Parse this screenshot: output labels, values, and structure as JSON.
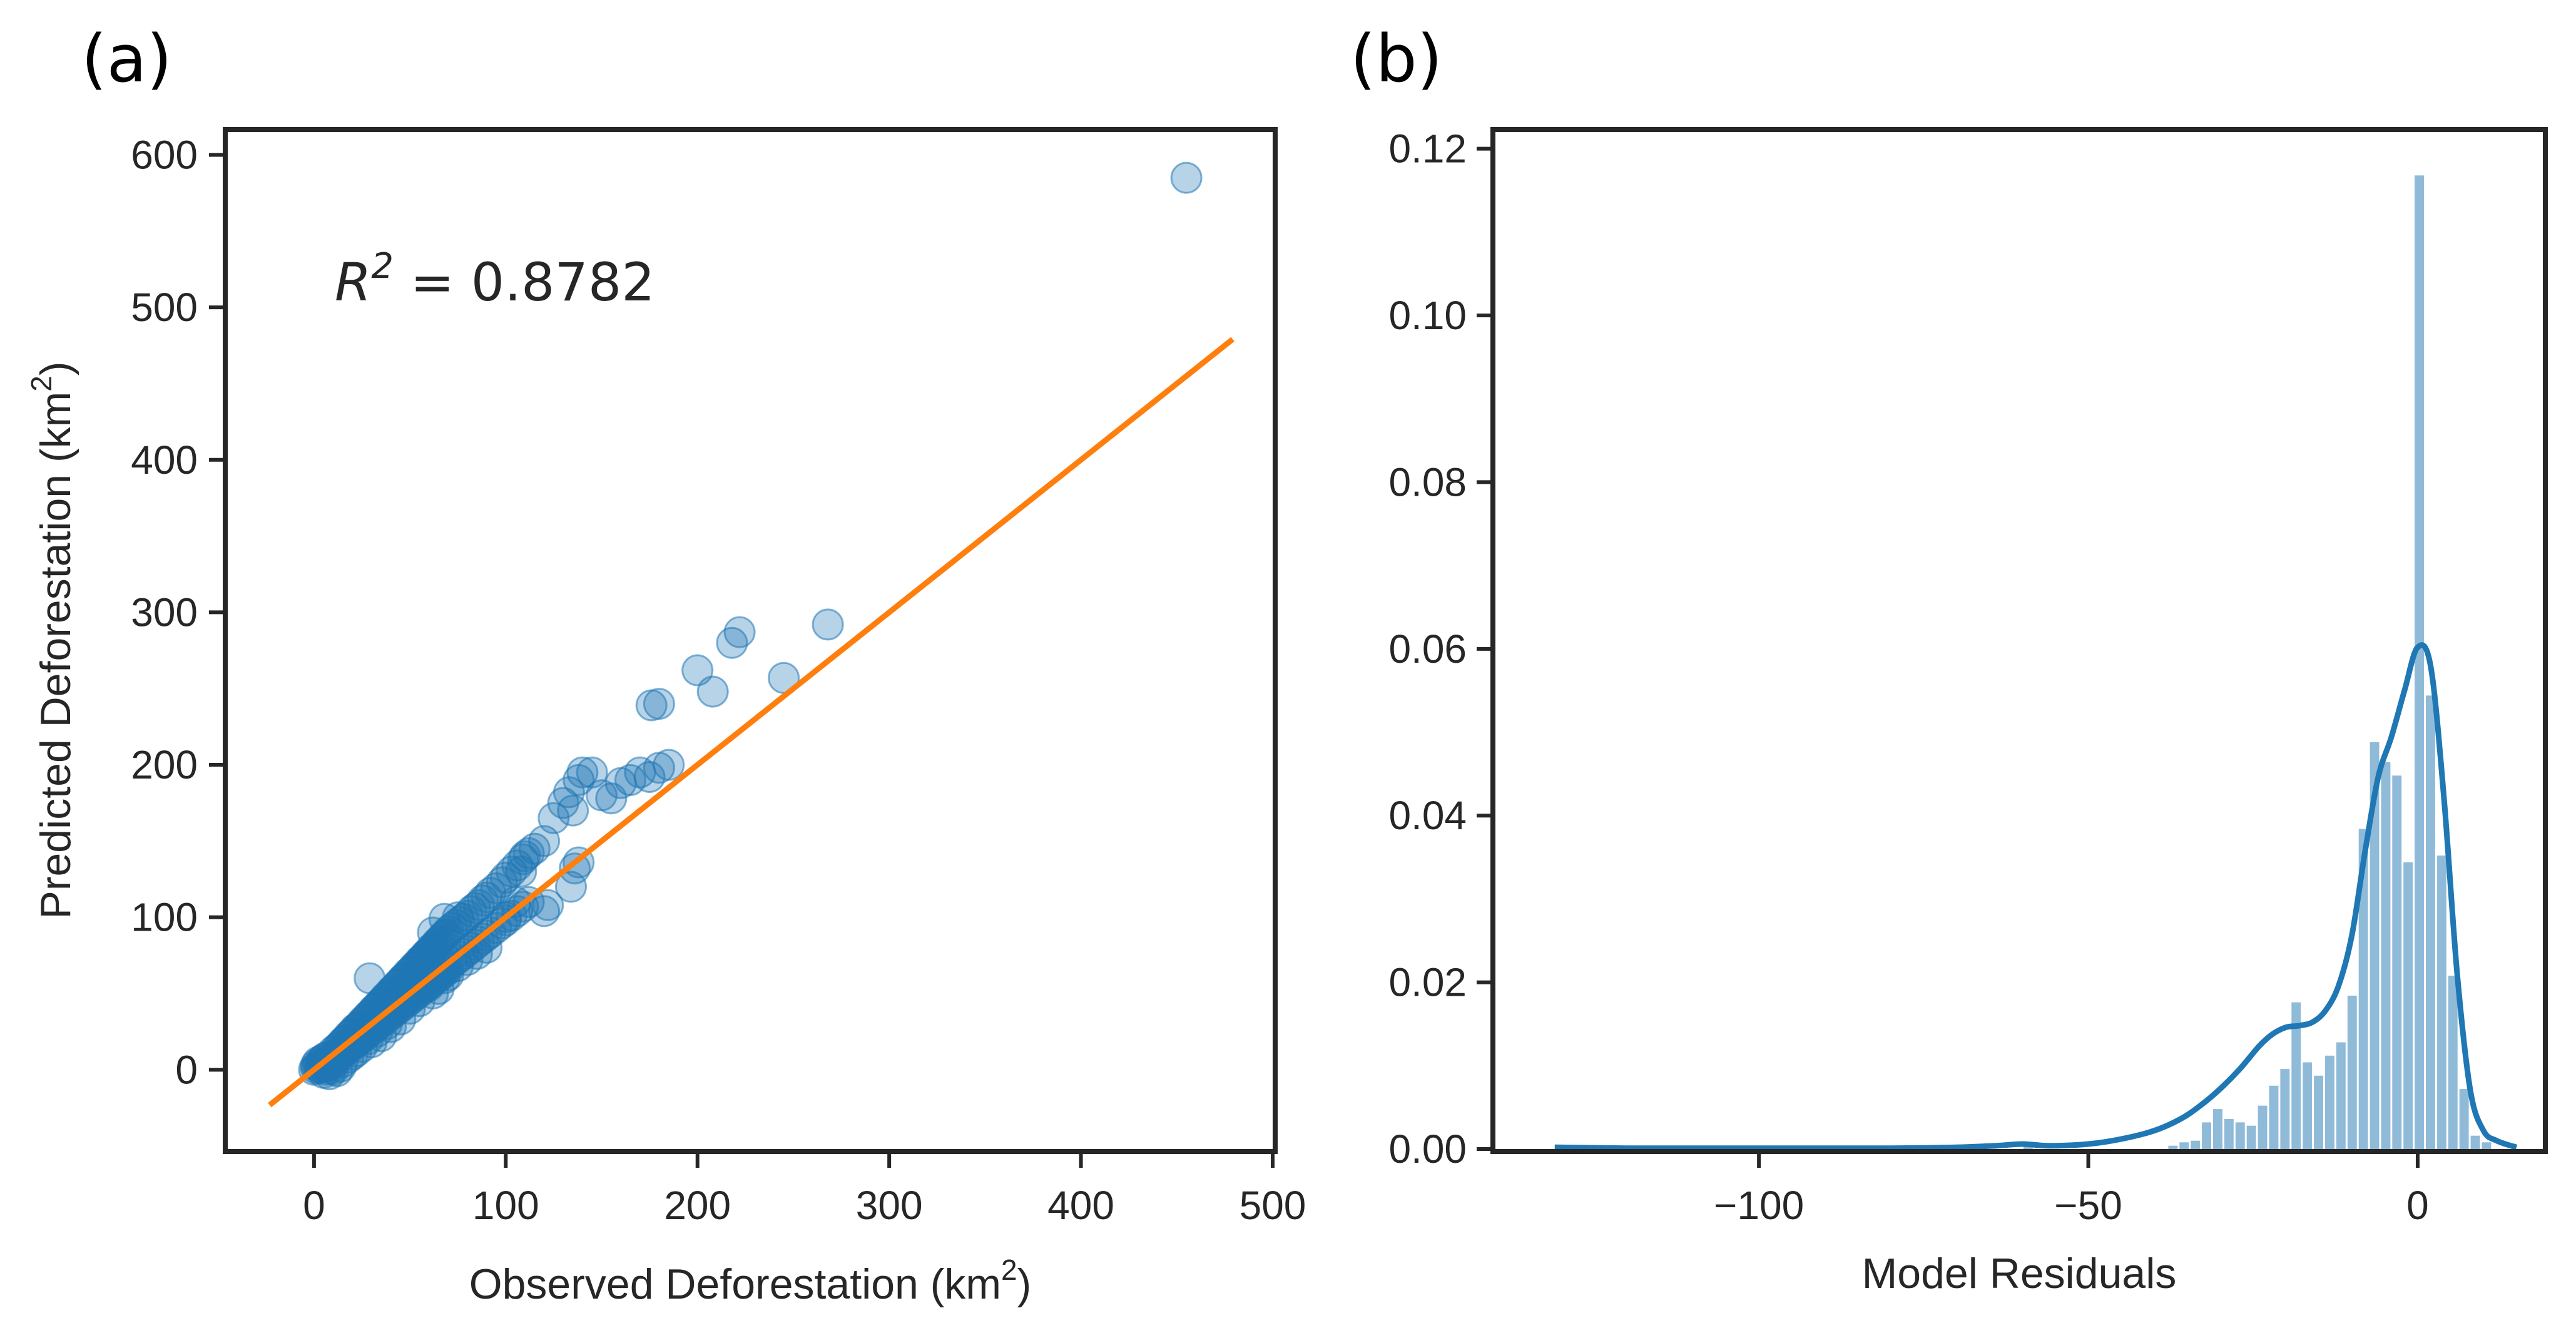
{
  "chart_data": [
    {
      "type": "scatter",
      "panel_label": "(a)",
      "xlabel": "Observed Deforestation (km",
      "xlabel_sup": "2",
      "xlabel_end": ")",
      "ylabel": "Predicted Deforestation (km",
      "ylabel_sup": "2",
      "ylabel_end": ")",
      "xlim": [
        -45,
        500
      ],
      "ylim": [
        -52,
        615
      ],
      "xticks": [
        0,
        100,
        200,
        300,
        400,
        500
      ],
      "xtick_labels": [
        "0",
        "100",
        "200",
        "300",
        "400",
        "500"
      ],
      "yticks": [
        0,
        100,
        200,
        300,
        400,
        500,
        600
      ],
      "ytick_labels": [
        "0",
        "100",
        "200",
        "300",
        "400",
        "500",
        "600"
      ],
      "annotation_prefix": "R",
      "annotation_sup": "2",
      "annotation_value": " = 0.8782",
      "fit_line": {
        "x": [
          -22,
          478
        ],
        "y": [
          -22,
          478
        ],
        "color": "#ff7f0e"
      },
      "point_color": "#1f77b4",
      "points": [
        [
          0,
          0
        ],
        [
          1,
          1
        ],
        [
          1,
          3
        ],
        [
          2,
          2
        ],
        [
          2,
          5
        ],
        [
          3,
          1
        ],
        [
          3,
          4
        ],
        [
          4,
          2
        ],
        [
          4,
          6
        ],
        [
          5,
          3
        ],
        [
          5,
          7
        ],
        [
          6,
          4
        ],
        [
          6,
          8
        ],
        [
          7,
          2
        ],
        [
          7,
          6
        ],
        [
          8,
          5
        ],
        [
          8,
          9
        ],
        [
          9,
          3
        ],
        [
          9,
          7
        ],
        [
          10,
          8
        ],
        [
          10,
          12
        ],
        [
          11,
          6
        ],
        [
          11,
          10
        ],
        [
          12,
          9
        ],
        [
          12,
          14
        ],
        [
          13,
          11
        ],
        [
          13,
          15
        ],
        [
          14,
          10
        ],
        [
          14,
          16
        ],
        [
          15,
          13
        ],
        [
          15,
          18
        ],
        [
          16,
          12
        ],
        [
          16,
          19
        ],
        [
          17,
          15
        ],
        [
          17,
          20
        ],
        [
          18,
          14
        ],
        [
          18,
          22
        ],
        [
          19,
          17
        ],
        [
          19,
          23
        ],
        [
          20,
          16
        ],
        [
          20,
          24
        ],
        [
          21,
          19
        ],
        [
          21,
          26
        ],
        [
          22,
          18
        ],
        [
          22,
          27
        ],
        [
          23,
          21
        ],
        [
          23,
          28
        ],
        [
          24,
          20
        ],
        [
          24,
          29
        ],
        [
          25,
          23
        ],
        [
          25,
          31
        ],
        [
          26,
          22
        ],
        [
          26,
          32
        ],
        [
          27,
          25
        ],
        [
          27,
          33
        ],
        [
          28,
          24
        ],
        [
          28,
          35
        ],
        [
          29,
          27
        ],
        [
          29,
          36
        ],
        [
          30,
          26
        ],
        [
          30,
          37
        ],
        [
          31,
          29
        ],
        [
          31,
          39
        ],
        [
          32,
          28
        ],
        [
          32,
          40
        ],
        [
          33,
          31
        ],
        [
          33,
          41
        ],
        [
          34,
          30
        ],
        [
          34,
          43
        ],
        [
          35,
          33
        ],
        [
          35,
          44
        ],
        [
          36,
          32
        ],
        [
          36,
          45
        ],
        [
          37,
          35
        ],
        [
          37,
          47
        ],
        [
          38,
          34
        ],
        [
          38,
          48
        ],
        [
          39,
          37
        ],
        [
          39,
          49
        ],
        [
          40,
          36
        ],
        [
          40,
          51
        ],
        [
          41,
          39
        ],
        [
          41,
          52
        ],
        [
          42,
          38
        ],
        [
          42,
          53
        ],
        [
          43,
          41
        ],
        [
          43,
          55
        ],
        [
          44,
          40
        ],
        [
          44,
          56
        ],
        [
          45,
          43
        ],
        [
          45,
          57
        ],
        [
          46,
          42
        ],
        [
          46,
          59
        ],
        [
          47,
          45
        ],
        [
          47,
          60
        ],
        [
          48,
          44
        ],
        [
          48,
          61
        ],
        [
          49,
          47
        ],
        [
          49,
          63
        ],
        [
          50,
          46
        ],
        [
          50,
          64
        ],
        [
          51,
          49
        ],
        [
          51,
          65
        ],
        [
          52,
          48
        ],
        [
          52,
          67
        ],
        [
          53,
          51
        ],
        [
          53,
          68
        ],
        [
          54,
          50
        ],
        [
          54,
          69
        ],
        [
          55,
          53
        ],
        [
          55,
          71
        ],
        [
          56,
          52
        ],
        [
          56,
          72
        ],
        [
          57,
          55
        ],
        [
          57,
          73
        ],
        [
          58,
          54
        ],
        [
          58,
          75
        ],
        [
          59,
          57
        ],
        [
          59,
          76
        ],
        [
          60,
          56
        ],
        [
          60,
          77
        ],
        [
          61,
          59
        ],
        [
          61,
          79
        ],
        [
          62,
          58
        ],
        [
          62,
          80
        ],
        [
          63,
          61
        ],
        [
          63,
          81
        ],
        [
          64,
          60
        ],
        [
          64,
          83
        ],
        [
          65,
          63
        ],
        [
          65,
          84
        ],
        [
          66,
          62
        ],
        [
          66,
          85
        ],
        [
          67,
          65
        ],
        [
          67,
          87
        ],
        [
          68,
          64
        ],
        [
          68,
          88
        ],
        [
          69,
          67
        ],
        [
          69,
          89
        ],
        [
          70,
          66
        ],
        [
          70,
          91
        ],
        [
          72,
          70
        ],
        [
          72,
          93
        ],
        [
          74,
          72
        ],
        [
          74,
          95
        ],
        [
          76,
          74
        ],
        [
          76,
          97
        ],
        [
          78,
          76
        ],
        [
          78,
          99
        ],
        [
          80,
          78
        ],
        [
          80,
          101
        ],
        [
          82,
          80
        ],
        [
          82,
          104
        ],
        [
          84,
          82
        ],
        [
          84,
          106
        ],
        [
          86,
          84
        ],
        [
          86,
          108
        ],
        [
          88,
          86
        ],
        [
          88,
          111
        ],
        [
          90,
          88
        ],
        [
          90,
          113
        ],
        [
          92,
          90
        ],
        [
          92,
          116
        ],
        [
          95,
          93
        ],
        [
          95,
          119
        ],
        [
          98,
          96
        ],
        [
          98,
          123
        ],
        [
          100,
          98
        ],
        [
          100,
          126
        ],
        [
          103,
          101
        ],
        [
          103,
          130
        ],
        [
          106,
          104
        ],
        [
          106,
          134
        ],
        [
          109,
          107
        ],
        [
          109,
          138
        ],
        [
          112,
          110
        ],
        [
          112,
          142
        ],
        [
          5,
          -2
        ],
        [
          8,
          -3
        ],
        [
          10,
          0
        ],
        [
          12,
          -1
        ],
        [
          14,
          2
        ],
        [
          6,
          0
        ],
        [
          9,
          1
        ],
        [
          15,
          5
        ],
        [
          18,
          8
        ],
        [
          20,
          10
        ],
        [
          22,
          12
        ],
        [
          25,
          15
        ],
        [
          28,
          20
        ],
        [
          30,
          18
        ],
        [
          33,
          25
        ],
        [
          35,
          22
        ],
        [
          38,
          30
        ],
        [
          40,
          28
        ],
        [
          45,
          33
        ],
        [
          50,
          40
        ],
        [
          55,
          45
        ],
        [
          60,
          55
        ],
        [
          62,
          50
        ],
        [
          65,
          53
        ],
        [
          68,
          60
        ],
        [
          70,
          62
        ],
        [
          75,
          68
        ],
        [
          80,
          72
        ],
        [
          85,
          76
        ],
        [
          90,
          80
        ],
        [
          100,
          100
        ],
        [
          105,
          110
        ],
        [
          108,
          130
        ],
        [
          110,
          140
        ],
        [
          115,
          145
        ],
        [
          120,
          150
        ],
        [
          125,
          165
        ],
        [
          130,
          175
        ],
        [
          133,
          182
        ],
        [
          135,
          170
        ],
        [
          138,
          190
        ],
        [
          140,
          195
        ],
        [
          145,
          195
        ],
        [
          150,
          180
        ],
        [
          155,
          178
        ],
        [
          160,
          188
        ],
        [
          165,
          190
        ],
        [
          170,
          195
        ],
        [
          175,
          192
        ],
        [
          180,
          198
        ],
        [
          185,
          200
        ],
        [
          29,
          60
        ],
        [
          55,
          70
        ],
        [
          62,
          90
        ],
        [
          68,
          99
        ],
        [
          75,
          100
        ],
        [
          120,
          104
        ],
        [
          122,
          108
        ],
        [
          134,
          120
        ],
        [
          136,
          132
        ],
        [
          138,
          136
        ],
        [
          176,
          239
        ],
        [
          180,
          240
        ],
        [
          200,
          262
        ],
        [
          208,
          248
        ],
        [
          218,
          280
        ],
        [
          222,
          287
        ],
        [
          245,
          257
        ],
        [
          268,
          292
        ],
        [
          455,
          585
        ]
      ]
    },
    {
      "type": "histogram",
      "panel_label": "(b)",
      "xlabel": "Model Residuals",
      "ylabel": "",
      "xlim": [
        -140,
        19
      ],
      "ylim": [
        0,
        0.122
      ],
      "xticks": [
        -100,
        -50,
        0
      ],
      "xtick_labels": [
        "−100",
        "−50",
        "0"
      ],
      "yticks": [
        0.0,
        0.02,
        0.04,
        0.06,
        0.08,
        0.1,
        0.12
      ],
      "ytick_labels": [
        "0.00",
        "0.02",
        "0.04",
        "0.06",
        "0.08",
        "0.10",
        "0.12"
      ],
      "bar_color": "#1f77b4",
      "bin_width": 1.7,
      "bars": [
        {
          "x": -131,
          "h": 0.0002
        },
        {
          "x": -60,
          "h": 0.0006
        },
        {
          "x": -38,
          "h": 0.0004
        },
        {
          "x": -36.3,
          "h": 0.0008
        },
        {
          "x": -34.6,
          "h": 0.001
        },
        {
          "x": -32.9,
          "h": 0.0032
        },
        {
          "x": -31.2,
          "h": 0.0048
        },
        {
          "x": -29.5,
          "h": 0.0036
        },
        {
          "x": -27.8,
          "h": 0.0032
        },
        {
          "x": -26.1,
          "h": 0.0028
        },
        {
          "x": -24.4,
          "h": 0.0052
        },
        {
          "x": -22.7,
          "h": 0.0076
        },
        {
          "x": -21.0,
          "h": 0.0096
        },
        {
          "x": -19.3,
          "h": 0.0176
        },
        {
          "x": -17.6,
          "h": 0.0104
        },
        {
          "x": -15.9,
          "h": 0.0088
        },
        {
          "x": -14.2,
          "h": 0.0112
        },
        {
          "x": -12.5,
          "h": 0.0128
        },
        {
          "x": -10.8,
          "h": 0.0184
        },
        {
          "x": -9.1,
          "h": 0.0384
        },
        {
          "x": -7.4,
          "h": 0.0488
        },
        {
          "x": -5.7,
          "h": 0.0464
        },
        {
          "x": -4.0,
          "h": 0.0448
        },
        {
          "x": -2.3,
          "h": 0.0344
        },
        {
          "x": -0.6,
          "h": 0.1168
        },
        {
          "x": 1.1,
          "h": 0.0544
        },
        {
          "x": 2.8,
          "h": 0.0352
        },
        {
          "x": 4.5,
          "h": 0.0208
        },
        {
          "x": 6.2,
          "h": 0.0072
        },
        {
          "x": 7.9,
          "h": 0.0016
        },
        {
          "x": 9.6,
          "h": 0.0008
        }
      ],
      "kde": {
        "x": [
          -131,
          -120,
          -100,
          -80,
          -70,
          -64,
          -60,
          -56,
          -50,
          -45,
          -40,
          -36,
          -33,
          -30,
          -27,
          -24,
          -22,
          -20,
          -18,
          -16,
          -14,
          -12,
          -10,
          -8,
          -6,
          -4,
          -2,
          0,
          2,
          4,
          6,
          8,
          10,
          12,
          15
        ],
        "y": [
          0.0002,
          0.0001,
          0.0001,
          0.0001,
          0.0002,
          0.0004,
          0.0006,
          0.0004,
          0.0006,
          0.0012,
          0.0022,
          0.0036,
          0.0052,
          0.0072,
          0.0096,
          0.0124,
          0.0138,
          0.0146,
          0.0148,
          0.0152,
          0.0166,
          0.0196,
          0.0256,
          0.0356,
          0.0446,
          0.0494,
          0.055,
          0.0602,
          0.0578,
          0.042,
          0.021,
          0.007,
          0.0022,
          0.001,
          0.0002
        ]
      }
    }
  ]
}
